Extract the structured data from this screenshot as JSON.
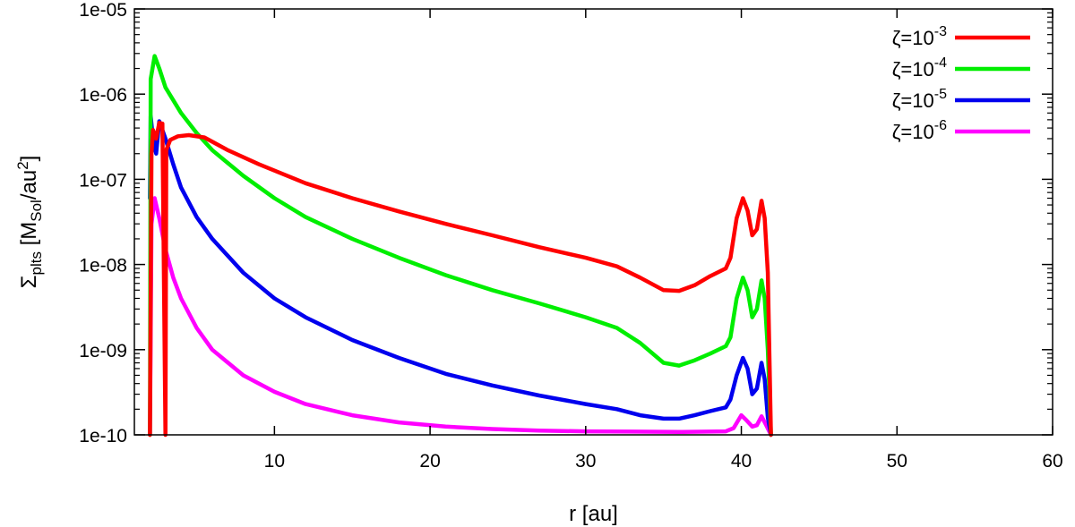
{
  "chart_data": {
    "type": "line",
    "xlabel": "r [au]",
    "ylabel_main": "Σ",
    "ylabel_sub": "plts",
    "ylabel_unit_pre": " [M",
    "ylabel_unit_sub": "Sol",
    "ylabel_unit_mid": "/au",
    "ylabel_unit_sup": "2",
    "ylabel_unit_post": "]",
    "xlim": [
      1,
      60
    ],
    "ylim": [
      1e-10,
      1e-05
    ],
    "yscale": "log",
    "grid": false,
    "legend_position": "top-right",
    "x_ticks": [
      10,
      20,
      30,
      40,
      50,
      60
    ],
    "x_tick_labels": [
      "10",
      "20",
      "30",
      "40",
      "50",
      "60"
    ],
    "y_ticks": [
      1e-10,
      1e-09,
      1e-08,
      1e-07,
      1e-06,
      1e-05
    ],
    "y_tick_labels": [
      "1e-10",
      "1e-09",
      "1e-08",
      "1e-07",
      "1e-06",
      "1e-05"
    ],
    "series": [
      {
        "name_base": "ζ=10",
        "name_exp": "-3",
        "color": "#ff0000",
        "points": [
          [
            2.0,
            1e-10
          ],
          [
            2.1,
            2e-07
          ],
          [
            2.2,
            3.8e-07
          ],
          [
            2.4,
            3e-07
          ],
          [
            2.6,
            4.6e-07
          ],
          [
            2.8,
            4.5e-07
          ],
          [
            3.0,
            1e-10
          ],
          [
            3.05,
            2.2e-07
          ],
          [
            3.3,
            2.9e-07
          ],
          [
            3.8,
            3.2e-07
          ],
          [
            4.5,
            3.3e-07
          ],
          [
            5.5,
            3.1e-07
          ],
          [
            7,
            2.2e-07
          ],
          [
            9,
            1.5e-07
          ],
          [
            12,
            9e-08
          ],
          [
            15,
            6e-08
          ],
          [
            18,
            4.2e-08
          ],
          [
            21,
            3e-08
          ],
          [
            24,
            2.2e-08
          ],
          [
            27,
            1.6e-08
          ],
          [
            30,
            1.2e-08
          ],
          [
            32,
            9.5e-09
          ],
          [
            33.5,
            7e-09
          ],
          [
            35,
            5e-09
          ],
          [
            36,
            4.9e-09
          ],
          [
            37,
            5.7e-09
          ],
          [
            38,
            7.3e-09
          ],
          [
            39,
            9e-09
          ],
          [
            39.3,
            1.2e-08
          ],
          [
            39.7,
            3.5e-08
          ],
          [
            40.1,
            6e-08
          ],
          [
            40.4,
            4.3e-08
          ],
          [
            40.7,
            2.2e-08
          ],
          [
            41.0,
            2.6e-08
          ],
          [
            41.3,
            5.6e-08
          ],
          [
            41.5,
            3.5e-08
          ],
          [
            41.7,
            8e-09
          ],
          [
            41.9,
            1e-10
          ]
        ]
      },
      {
        "name_base": "ζ=10",
        "name_exp": "-4",
        "color": "#00ee00",
        "points": [
          [
            2.0,
            1e-10
          ],
          [
            2.05,
            1.5e-06
          ],
          [
            2.3,
            2.8e-06
          ],
          [
            2.6,
            2e-06
          ],
          [
            3,
            1.2e-06
          ],
          [
            4,
            6e-07
          ],
          [
            5,
            3.5e-07
          ],
          [
            6,
            2.2e-07
          ],
          [
            8,
            1.1e-07
          ],
          [
            10,
            6e-08
          ],
          [
            12,
            3.6e-08
          ],
          [
            15,
            2e-08
          ],
          [
            18,
            1.2e-08
          ],
          [
            21,
            7.5e-09
          ],
          [
            24,
            5e-09
          ],
          [
            27,
            3.5e-09
          ],
          [
            30,
            2.4e-09
          ],
          [
            32,
            1.8e-09
          ],
          [
            33.5,
            1.2e-09
          ],
          [
            35,
            7e-10
          ],
          [
            36,
            6.5e-10
          ],
          [
            37,
            7.5e-10
          ],
          [
            38,
            9e-10
          ],
          [
            39,
            1.1e-09
          ],
          [
            39.3,
            1.4e-09
          ],
          [
            39.7,
            4e-09
          ],
          [
            40.1,
            7e-09
          ],
          [
            40.4,
            5e-09
          ],
          [
            40.7,
            2.4e-09
          ],
          [
            41.0,
            3e-09
          ],
          [
            41.3,
            6.5e-09
          ],
          [
            41.5,
            4e-09
          ],
          [
            41.7,
            1e-09
          ],
          [
            41.9,
            1e-10
          ]
        ]
      },
      {
        "name_base": "ζ=10",
        "name_exp": "-5",
        "color": "#0000ee",
        "points": [
          [
            2.0,
            6e-08
          ],
          [
            2.05,
            5.5e-07
          ],
          [
            2.2,
            3e-07
          ],
          [
            2.4,
            2e-07
          ],
          [
            2.6,
            4.8e-07
          ],
          [
            3,
            3e-07
          ],
          [
            3.5,
            1.5e-07
          ],
          [
            4,
            8e-08
          ],
          [
            5,
            3.6e-08
          ],
          [
            6,
            2e-08
          ],
          [
            8,
            8e-09
          ],
          [
            10,
            4e-09
          ],
          [
            12,
            2.4e-09
          ],
          [
            15,
            1.3e-09
          ],
          [
            18,
            8e-10
          ],
          [
            21,
            5.2e-10
          ],
          [
            24,
            3.8e-10
          ],
          [
            27,
            2.9e-10
          ],
          [
            30,
            2.3e-10
          ],
          [
            32,
            2e-10
          ],
          [
            33.5,
            1.7e-10
          ],
          [
            35,
            1.55e-10
          ],
          [
            36,
            1.55e-10
          ],
          [
            37,
            1.7e-10
          ],
          [
            38,
            1.9e-10
          ],
          [
            39,
            2.1e-10
          ],
          [
            39.3,
            2.6e-10
          ],
          [
            39.7,
            5e-10
          ],
          [
            40.1,
            8e-10
          ],
          [
            40.4,
            6e-10
          ],
          [
            40.7,
            3e-10
          ],
          [
            41.0,
            3.5e-10
          ],
          [
            41.3,
            7e-10
          ],
          [
            41.5,
            4.5e-10
          ],
          [
            41.7,
            1.6e-10
          ],
          [
            41.9,
            1e-10
          ]
        ]
      },
      {
        "name_base": "ζ=10",
        "name_exp": "-6",
        "color": "#ff00ff",
        "points": [
          [
            2.0,
            1e-10
          ],
          [
            2.1,
            3e-08
          ],
          [
            2.3,
            6e-08
          ],
          [
            2.6,
            3.5e-08
          ],
          [
            3,
            1.5e-08
          ],
          [
            3.5,
            7e-09
          ],
          [
            4,
            4e-09
          ],
          [
            5,
            1.8e-09
          ],
          [
            6,
            1e-09
          ],
          [
            8,
            5e-10
          ],
          [
            10,
            3.2e-10
          ],
          [
            12,
            2.3e-10
          ],
          [
            15,
            1.7e-10
          ],
          [
            18,
            1.4e-10
          ],
          [
            21,
            1.25e-10
          ],
          [
            24,
            1.17e-10
          ],
          [
            27,
            1.12e-10
          ],
          [
            30,
            1.1e-10
          ],
          [
            33,
            1.09e-10
          ],
          [
            36,
            1.08e-10
          ],
          [
            39,
            1.1e-10
          ],
          [
            39.5,
            1.2e-10
          ],
          [
            40.0,
            1.7e-10
          ],
          [
            40.3,
            1.5e-10
          ],
          [
            40.7,
            1.25e-10
          ],
          [
            41.0,
            1.3e-10
          ],
          [
            41.3,
            1.65e-10
          ],
          [
            41.6,
            1.3e-10
          ],
          [
            41.9,
            1e-10
          ]
        ]
      }
    ]
  }
}
